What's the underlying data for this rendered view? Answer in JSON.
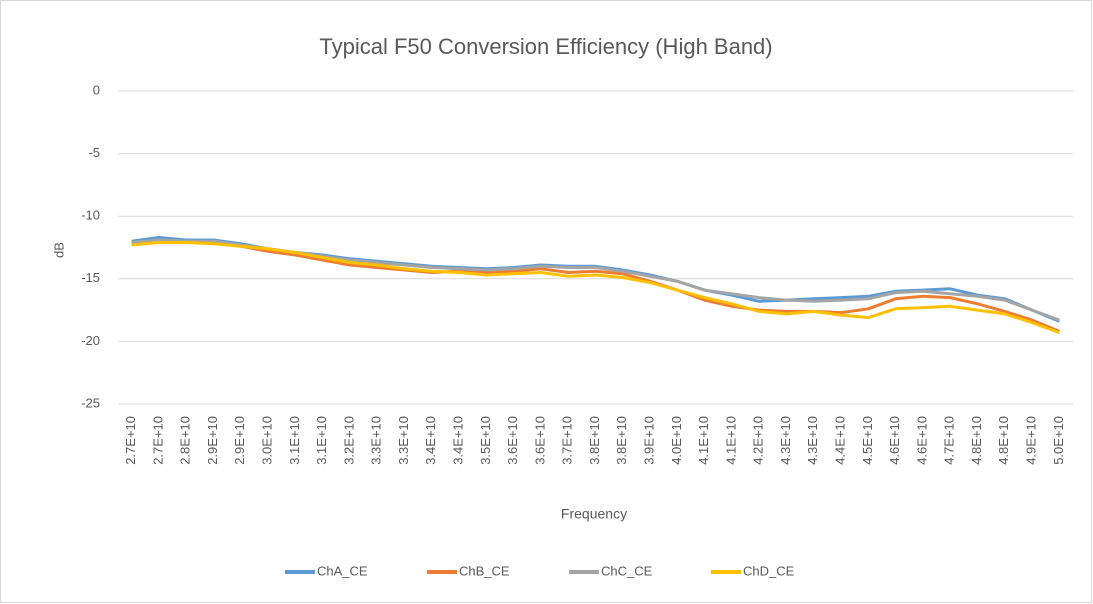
{
  "chart_data": {
    "type": "line",
    "title": "Typical F50 Conversion Efficiency (High Band)",
    "xlabel": "Frequency",
    "ylabel": "dB",
    "categories": [
      "2.7E+10",
      "2.7E+10",
      "2.8E+10",
      "2.9E+10",
      "2.9E+10",
      "3.0E+10",
      "3.1E+10",
      "3.1E+10",
      "3.2E+10",
      "3.3E+10",
      "3.3E+10",
      "3.4E+10",
      "3.4E+10",
      "3.5E+10",
      "3.6E+10",
      "3.6E+10",
      "3.7E+10",
      "3.8E+10",
      "3.8E+10",
      "3.9E+10",
      "4.0E+10",
      "4.1E+10",
      "4.1E+10",
      "4.2E+10",
      "4.3E+10",
      "4.3E+10",
      "4.4E+10",
      "4.5E+10",
      "4.6E+10",
      "4.6E+10",
      "4.7E+10",
      "4.8E+10",
      "4.8E+10",
      "4.9E+10",
      "5.0E+10"
    ],
    "series": [
      {
        "name": "ChA_CE",
        "color": "#5b9bd5",
        "values": [
          -12.0,
          -11.7,
          -11.9,
          -11.9,
          -12.2,
          -12.6,
          -12.9,
          -13.1,
          -13.4,
          -13.6,
          -13.8,
          -14.0,
          -14.1,
          -14.2,
          -14.1,
          -13.9,
          -14.0,
          -14.0,
          -14.3,
          -14.7,
          -15.2,
          -15.9,
          -16.3,
          -16.8,
          -16.7,
          -16.6,
          -16.5,
          -16.4,
          -16.0,
          -15.9,
          -15.8,
          -16.3,
          -16.6,
          -17.5,
          -18.4
        ]
      },
      {
        "name": "ChB_CE",
        "color": "#ed7d31",
        "values": [
          -12.2,
          -12.0,
          -12.1,
          -12.1,
          -12.4,
          -12.8,
          -13.1,
          -13.5,
          -13.9,
          -14.1,
          -14.3,
          -14.5,
          -14.4,
          -14.5,
          -14.4,
          -14.2,
          -14.5,
          -14.4,
          -14.6,
          -15.2,
          -15.9,
          -16.7,
          -17.2,
          -17.5,
          -17.6,
          -17.6,
          -17.7,
          -17.4,
          -16.6,
          -16.4,
          -16.5,
          -17.0,
          -17.6,
          -18.3,
          -19.2
        ]
      },
      {
        "name": "ChC_CE",
        "color": "#a5a5a5",
        "values": [
          -12.1,
          -11.9,
          -12.0,
          -12.0,
          -12.3,
          -12.6,
          -12.9,
          -13.2,
          -13.5,
          -13.7,
          -13.9,
          -14.1,
          -14.2,
          -14.3,
          -14.2,
          -14.0,
          -14.1,
          -14.1,
          -14.4,
          -14.8,
          -15.2,
          -15.9,
          -16.2,
          -16.5,
          -16.7,
          -16.8,
          -16.7,
          -16.6,
          -16.1,
          -16.0,
          -16.2,
          -16.4,
          -16.7,
          -17.5,
          -18.3
        ]
      },
      {
        "name": "ChD_CE",
        "color": "#ffc000",
        "values": [
          -12.3,
          -12.1,
          -12.1,
          -12.2,
          -12.4,
          -12.6,
          -12.9,
          -13.3,
          -13.7,
          -13.9,
          -14.2,
          -14.4,
          -14.5,
          -14.7,
          -14.6,
          -14.5,
          -14.8,
          -14.7,
          -14.9,
          -15.3,
          -15.9,
          -16.5,
          -17.0,
          -17.6,
          -17.8,
          -17.6,
          -17.9,
          -18.1,
          -17.4,
          -17.3,
          -17.2,
          -17.5,
          -17.8,
          -18.5,
          -19.3
        ]
      }
    ],
    "ylim": [
      -25,
      0
    ],
    "yticks": [
      -25,
      -20,
      -15,
      -10,
      -5,
      0
    ],
    "grid": true,
    "legend": "bottom"
  }
}
